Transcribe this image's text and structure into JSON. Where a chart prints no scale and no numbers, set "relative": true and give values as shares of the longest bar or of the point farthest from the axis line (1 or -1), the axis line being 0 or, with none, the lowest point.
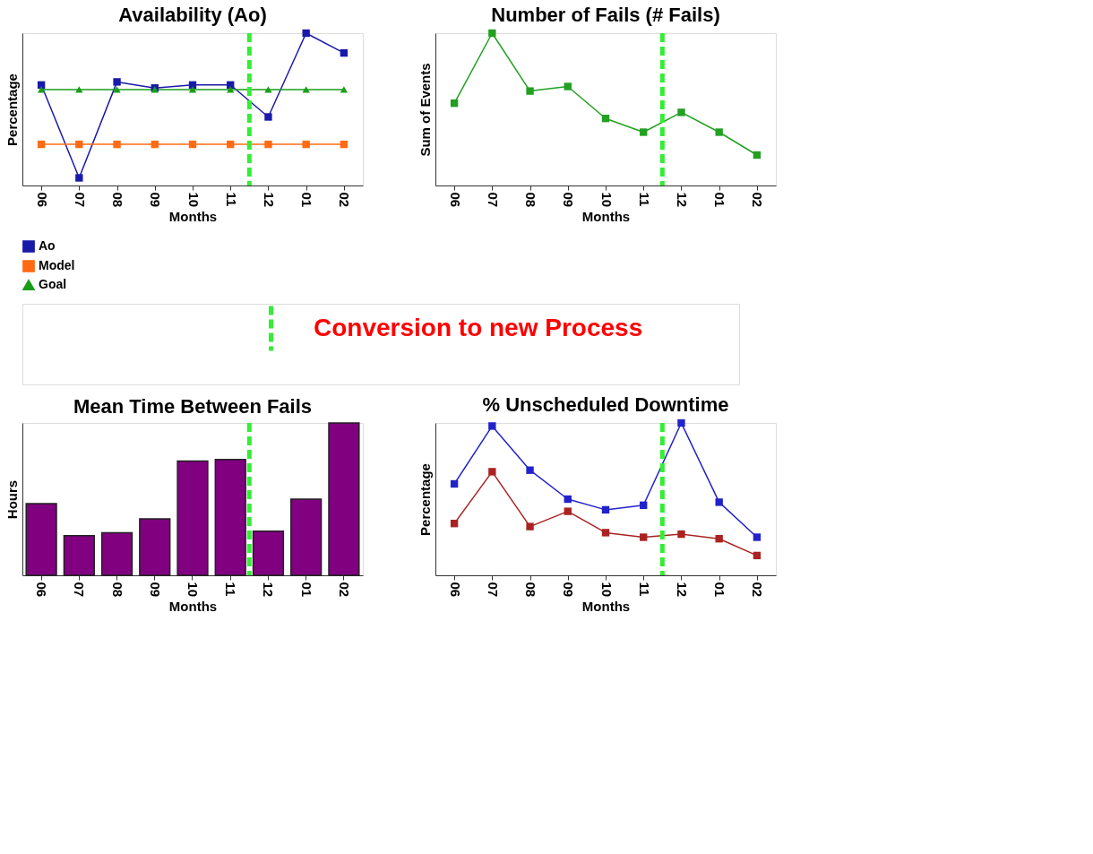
{
  "chart_data": [
    {
      "type": "line",
      "title": "Availability (Ao)",
      "xlabel": "Months",
      "ylabel": "Percentage",
      "relative": true,
      "tick_labels": "x",
      "legend": "bottom",
      "categories": [
        "06",
        "07",
        "08",
        "09",
        "10",
        "11",
        "12",
        "01",
        "02"
      ],
      "series": [
        {
          "name": "Ao",
          "color": "#1a1aaa",
          "marker": "square",
          "values": [
            0.66,
            0.05,
            0.68,
            0.64,
            0.66,
            0.66,
            0.45,
            1.0,
            0.87
          ]
        },
        {
          "name": "Model",
          "color": "#ff6a13",
          "marker": "square",
          "values": [
            0.27,
            0.27,
            0.27,
            0.27,
            0.27,
            0.27,
            0.27,
            0.27,
            0.27
          ]
        },
        {
          "name": "Goal",
          "color": "#1a9e1a",
          "marker": "triangle",
          "values": [
            0.63,
            0.63,
            0.63,
            0.63,
            0.63,
            0.63,
            0.63,
            0.63,
            0.63
          ]
        }
      ],
      "ref_lines": [
        {
          "axis": "x",
          "value": "12",
          "label": "Conversion to new Process",
          "color": "#33ee33",
          "line_style": "dashed"
        }
      ]
    },
    {
      "type": "line",
      "title": "Number of Fails (# Fails)",
      "xlabel": "Months",
      "ylabel": "Sum of Events",
      "relative": true,
      "tick_labels": "x",
      "marker": "square",
      "categories": [
        "06",
        "07",
        "08",
        "09",
        "10",
        "11",
        "12",
        "01",
        "02"
      ],
      "series": [
        {
          "color": "#22a022",
          "values": [
            0.54,
            1.0,
            0.62,
            0.65,
            0.44,
            0.35,
            0.48,
            0.35,
            0.2
          ]
        }
      ],
      "ref_lines": [
        {
          "axis": "x",
          "value": "12",
          "color": "#33ee33",
          "line_style": "dashed"
        }
      ]
    },
    {
      "type": "bar",
      "title": "Mean Time Between Fails",
      "xlabel": "Months",
      "ylabel": "Hours",
      "relative": true,
      "tick_labels": "x",
      "categories": [
        "06",
        "07",
        "08",
        "09",
        "10",
        "11",
        "12",
        "01",
        "02"
      ],
      "series": [
        {
          "color": "#800080",
          "values": [
            0.47,
            0.26,
            0.28,
            0.37,
            0.75,
            0.76,
            0.29,
            0.5,
            1.0
          ]
        }
      ],
      "ref_lines": [
        {
          "axis": "x",
          "value": "12",
          "color": "#33ee33",
          "line_style": "dashed"
        }
      ]
    },
    {
      "type": "line",
      "title": "% Unscheduled Downtime",
      "xlabel": "Months",
      "ylabel": "Percentage",
      "relative": true,
      "tick_labels": "x",
      "marker": "square",
      "categories": [
        "06",
        "07",
        "08",
        "09",
        "10",
        "11",
        "12",
        "01",
        "02"
      ],
      "series": [
        {
          "color": "#2222cc",
          "values": [
            0.6,
            0.98,
            0.69,
            0.5,
            0.43,
            0.46,
            1.0,
            0.48,
            0.25
          ]
        },
        {
          "color": "#aa2222",
          "values": [
            0.34,
            0.68,
            0.32,
            0.42,
            0.28,
            0.25,
            0.27,
            0.24,
            0.13
          ]
        }
      ],
      "ref_lines": [
        {
          "axis": "x",
          "value": "12",
          "color": "#33ee33",
          "line_style": "dashed"
        }
      ]
    }
  ]
}
